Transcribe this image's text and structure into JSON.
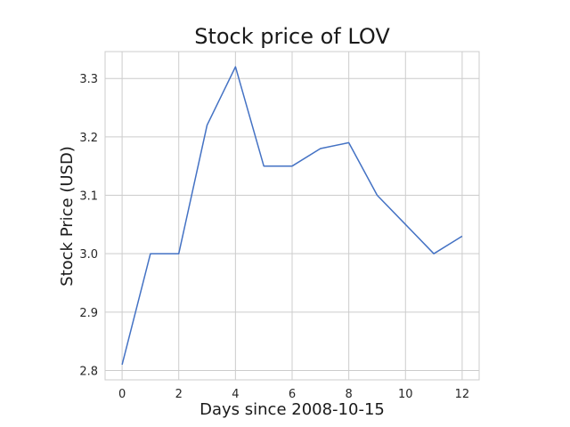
{
  "chart_data": {
    "type": "line",
    "title": "Stock price of LOV",
    "xlabel": "Days since 2008-10-15",
    "ylabel": "Stock Price (USD)",
    "x": [
      0,
      1,
      2,
      3,
      4,
      5,
      6,
      7,
      8,
      9,
      10,
      11,
      12
    ],
    "series": [
      {
        "values": [
          2.81,
          3.0,
          3.0,
          3.22,
          3.32,
          3.15,
          3.15,
          3.18,
          3.19,
          3.1,
          3.05,
          3.0,
          3.03
        ]
      }
    ],
    "xticks": [
      0,
      2,
      4,
      6,
      8,
      10,
      12
    ],
    "xtick_labels": [
      "0",
      "2",
      "4",
      "6",
      "8",
      "10",
      "12"
    ],
    "yticks": [
      2.8,
      2.9,
      3.0,
      3.1,
      3.2,
      3.3
    ],
    "ytick_labels": [
      "2.8",
      "2.9",
      "3.0",
      "3.1",
      "3.2",
      "3.3"
    ],
    "xlim": [
      -0.6,
      12.6
    ],
    "ylim": [
      2.784,
      3.346
    ],
    "grid": true,
    "colors": {
      "series": "#4472c4",
      "grid": "#cccccc"
    }
  }
}
